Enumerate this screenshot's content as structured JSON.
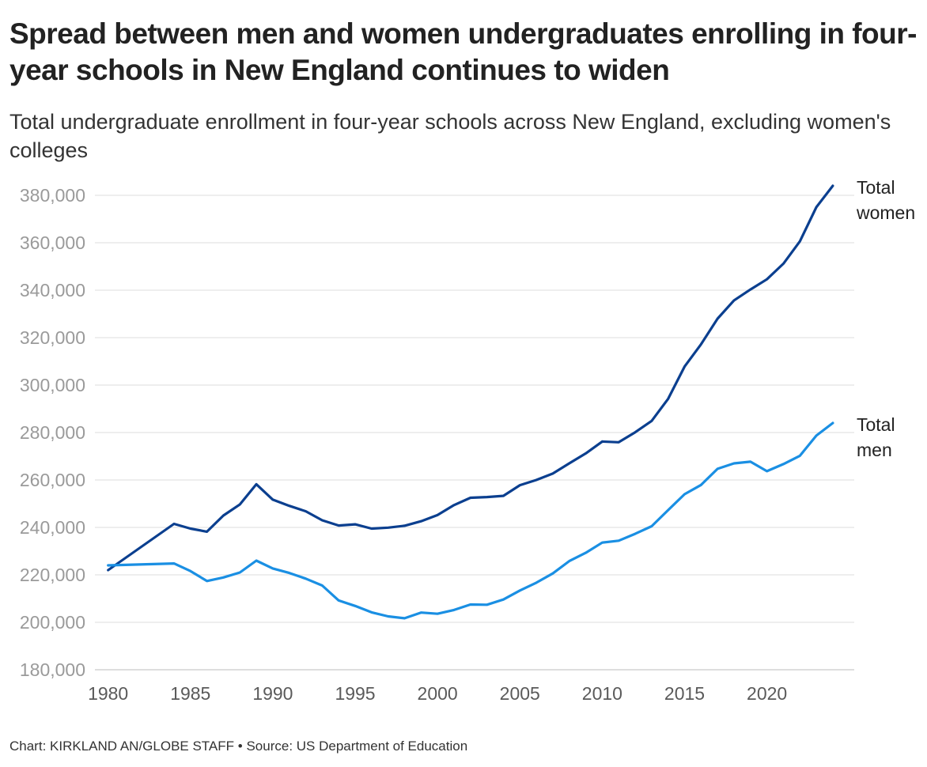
{
  "title": "Spread between men and women undergraduates enrolling in four-year schools in New England continues to widen",
  "subtitle": "Total undergraduate enrollment in four-year schools across New England, excluding women's colleges",
  "footer": {
    "credit": "Chart: KIRKLAND AN/GLOBE STAFF",
    "separator": "•",
    "source": "Source: US Department of Education"
  },
  "colors": {
    "women": "#0b3f8f",
    "men": "#1a8fe3",
    "grid": "#e3e3e3"
  },
  "chart_data": {
    "type": "line",
    "title": "Spread between men and women undergraduates enrolling in four-year schools in New England continues to widen",
    "subtitle": "Total undergraduate enrollment in four-year schools across New England, excluding women's colleges",
    "xlabel": "",
    "ylabel": "",
    "xlim": [
      1980,
      2024
    ],
    "ylim": [
      180000,
      380000
    ],
    "x_ticks": [
      1980,
      1985,
      1990,
      1995,
      2000,
      2005,
      2010,
      2015,
      2020
    ],
    "y_ticks": [
      180000,
      200000,
      220000,
      240000,
      260000,
      280000,
      300000,
      320000,
      340000,
      360000,
      380000
    ],
    "y_tick_labels": [
      "180,000",
      "200,000",
      "220,000",
      "240,000",
      "260,000",
      "280,000",
      "300,000",
      "320,000",
      "340,000",
      "360,000",
      "380,000"
    ],
    "grid": "horizontal",
    "legend": "direct labels at line ends",
    "series": [
      {
        "name": "Total women",
        "label_lines": [
          "Total",
          "women"
        ],
        "color": "#0b3f8f",
        "x": [
          1980,
          1984,
          1985,
          1986,
          1987,
          1988,
          1989,
          1990,
          1991,
          1992,
          1993,
          1994,
          1995,
          1996,
          1997,
          1998,
          1999,
          2000,
          2001,
          2002,
          2003,
          2004,
          2005,
          2006,
          2007,
          2008,
          2009,
          2010,
          2011,
          2012,
          2013,
          2014,
          2015,
          2016,
          2017,
          2018,
          2019,
          2020,
          2021,
          2022,
          2023,
          2024
        ],
        "values": [
          222000,
          241500,
          239500,
          238200,
          245000,
          249700,
          258200,
          251700,
          249100,
          246800,
          243000,
          240800,
          241300,
          239500,
          239900,
          240700,
          242600,
          245200,
          249400,
          252500,
          252800,
          253300,
          257800,
          260000,
          262700,
          267000,
          271200,
          276200,
          275900,
          280100,
          284900,
          294200,
          307800,
          317200,
          328000,
          335700,
          340300,
          344600,
          351200,
          360600,
          375000,
          384000
        ]
      },
      {
        "name": "Total men",
        "label_lines": [
          "Total",
          "men"
        ],
        "color": "#1a8fe3",
        "x": [
          1980,
          1984,
          1985,
          1986,
          1987,
          1988,
          1989,
          1990,
          1991,
          1992,
          1993,
          1994,
          1995,
          1996,
          1997,
          1998,
          1999,
          2000,
          2001,
          2002,
          2003,
          2004,
          2005,
          2006,
          2007,
          2008,
          2009,
          2010,
          2011,
          2012,
          2013,
          2014,
          2015,
          2016,
          2017,
          2018,
          2019,
          2020,
          2021,
          2022,
          2023,
          2024
        ],
        "values": [
          224000,
          224800,
          221600,
          217400,
          218900,
          221000,
          226000,
          222700,
          220800,
          218400,
          215500,
          209200,
          206900,
          204200,
          202500,
          201700,
          204100,
          203600,
          205200,
          207500,
          207400,
          209600,
          213400,
          216700,
          220600,
          225800,
          229300,
          233600,
          234400,
          237300,
          240500,
          247300,
          254000,
          257900,
          264700,
          267000,
          267700,
          263700,
          266700,
          270200,
          278700,
          284000
        ]
      }
    ]
  }
}
